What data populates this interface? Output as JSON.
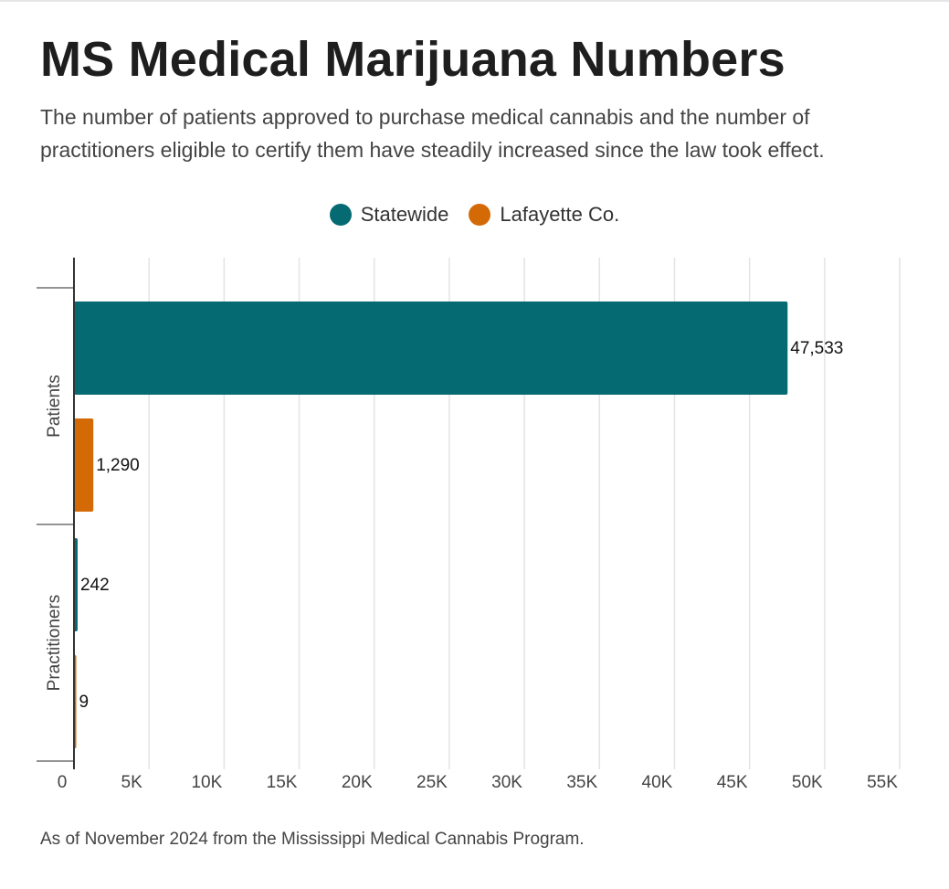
{
  "title": "MS Medical Marijuana Numbers",
  "subtitle": "The number of patients approved to purchase medical cannabis and the number of practitioners eligible to certify them have steadily increased since the law took effect.",
  "footnote": "As of November 2024 from the Mississippi Medical Cannabis Program.",
  "colors": {
    "statewide": "#066a73",
    "lafayette": "#d46a06"
  },
  "chart_data": {
    "type": "bar",
    "orientation": "horizontal",
    "categories": [
      "Patients",
      "Practitioners"
    ],
    "series": [
      {
        "name": "Statewide",
        "values": [
          47533,
          242
        ],
        "labels": [
          "47,533",
          "242"
        ]
      },
      {
        "name": "Lafayette Co.",
        "values": [
          1290,
          9
        ],
        "labels": [
          "1,290",
          "9"
        ]
      }
    ],
    "xlim": [
      0,
      55000
    ],
    "xticks": [
      0,
      5000,
      10000,
      15000,
      20000,
      25000,
      30000,
      35000,
      40000,
      45000,
      50000,
      55000
    ],
    "xtick_labels": [
      "0",
      "5K",
      "10K",
      "15K",
      "20K",
      "25K",
      "30K",
      "35K",
      "40K",
      "45K",
      "50K",
      "55K"
    ],
    "grid": true,
    "legend_position": "top-center"
  }
}
